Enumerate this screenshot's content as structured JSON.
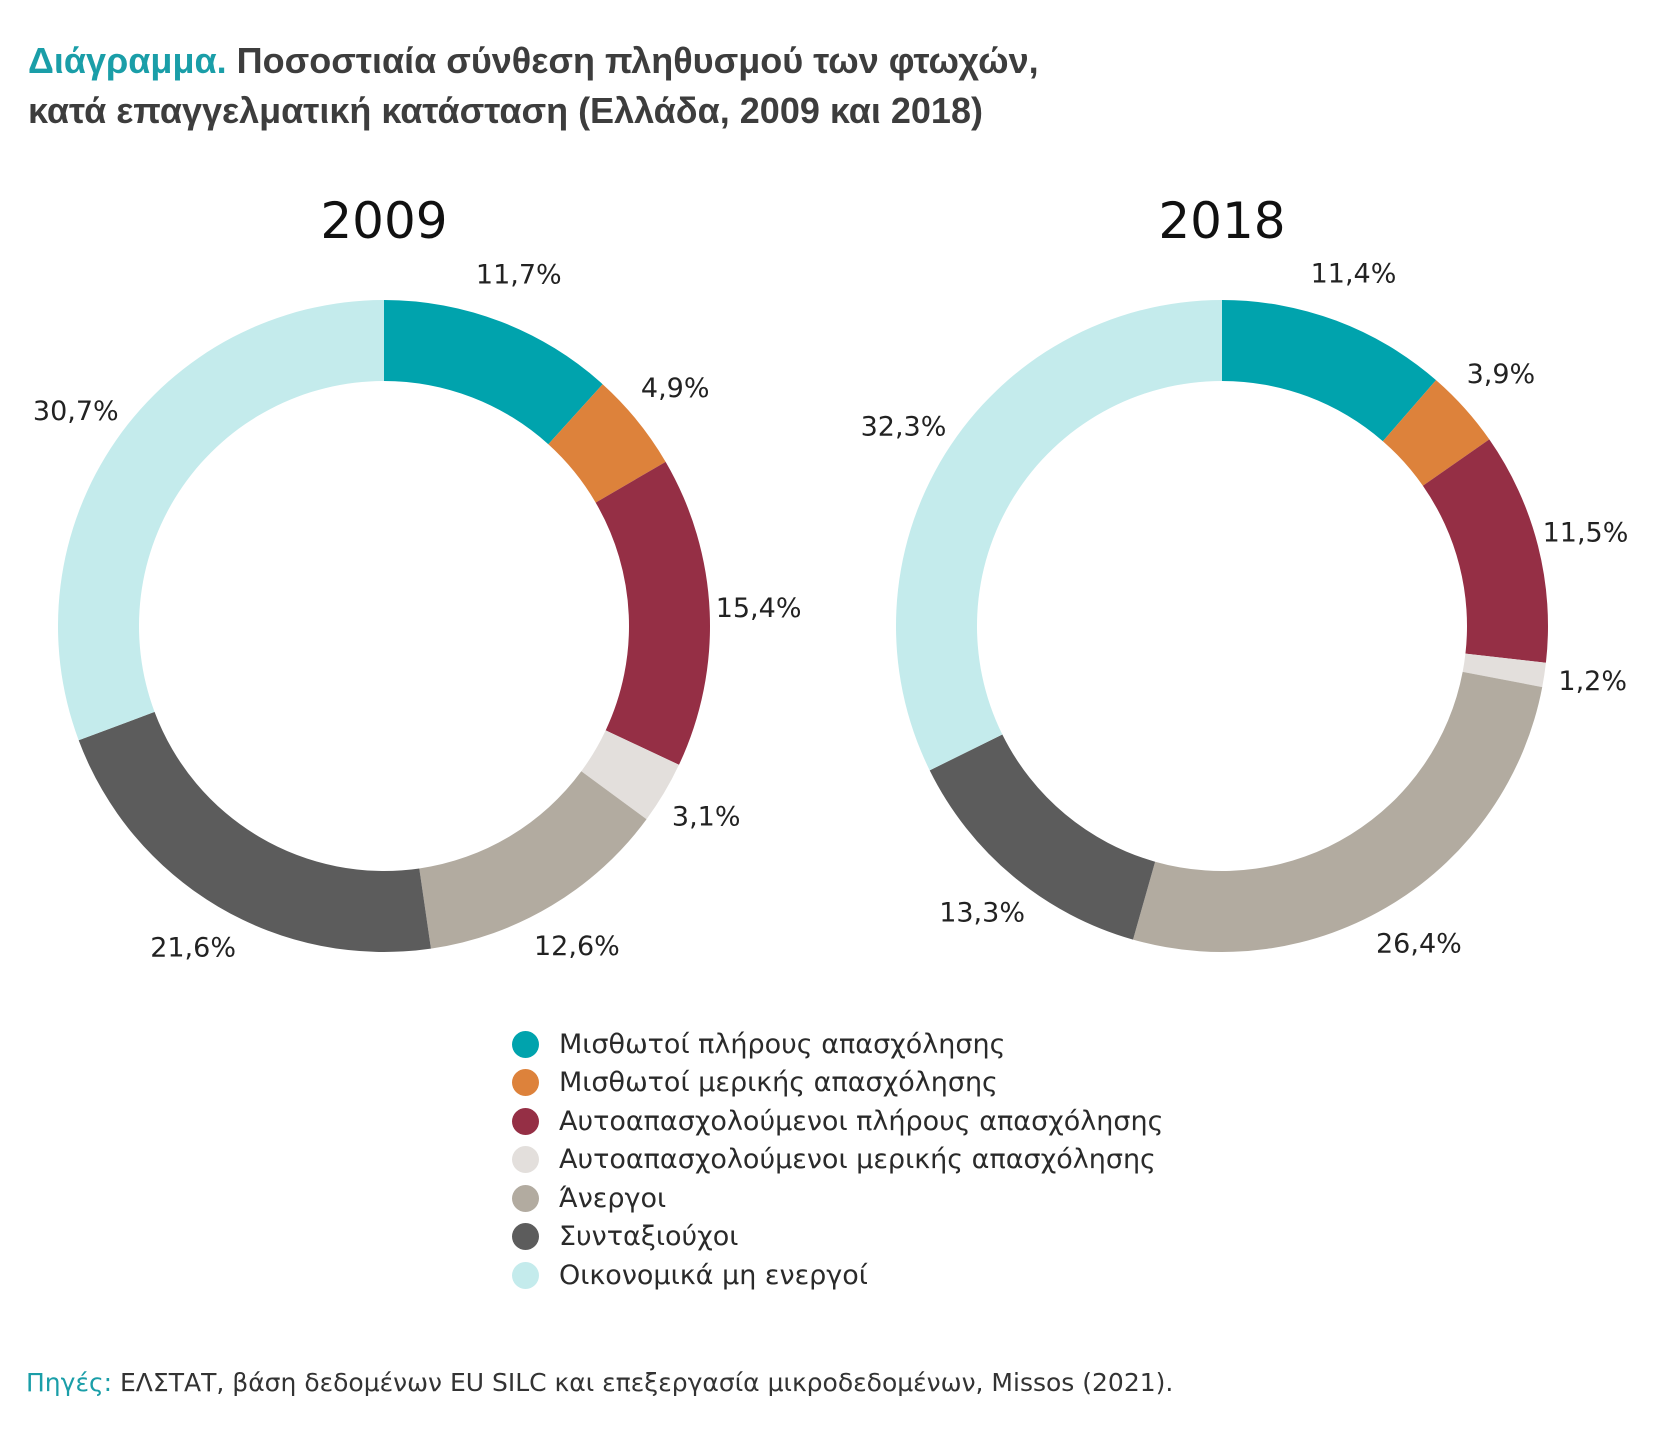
{
  "title": {
    "prefix": "Διάγραμμα.",
    "line1": "Ποσοστιαία σύνθεση πληθυσμού των φτωχών,",
    "line2": "κατά επαγγελματική κατάσταση (Ελλάδα, 2009 και 2018)"
  },
  "chart_data": [
    {
      "type": "pie",
      "title": "2009",
      "categories": [
        "Μισθωτοί πλήρους απασχόλησης",
        "Μισθωτοί μερικής απασχόλησης",
        "Αυτοαπασχολούμενοι πλήρους απασχόλησης",
        "Αυτοαπασχολούμενοι μερικής απασχόλησης",
        "Άνεργοι",
        "Συνταξιούχοι",
        "Οικονομικά μη ενεργοί"
      ],
      "values": [
        11.7,
        4.9,
        15.4,
        3.1,
        12.6,
        21.6,
        30.7
      ],
      "labels": [
        "11,7%",
        "4,9%",
        "15,4%",
        "3,1%",
        "12,6%",
        "21,6%",
        "30,7%"
      ]
    },
    {
      "type": "pie",
      "title": "2018",
      "categories": [
        "Μισθωτοί πλήρους απασχόλησης",
        "Μισθωτοί μερικής απασχόλησης",
        "Αυτοαπασχολούμενοι πλήρους απασχόλησης",
        "Αυτοαπασχολούμενοι μερικής απασχόλησης",
        "Άνεργοι",
        "Συνταξιούχοι",
        "Οικονομικά μη ενεργοί"
      ],
      "values": [
        11.4,
        3.9,
        11.5,
        1.2,
        26.4,
        13.3,
        32.3
      ],
      "labels": [
        "11,4%",
        "3,9%",
        "11,5%",
        "1,2%",
        "26,4%",
        "13,3%",
        "32,3%"
      ]
    }
  ],
  "colors": [
    "#00a3ad",
    "#dd823b",
    "#952f45",
    "#e3dfdc",
    "#b2aba0",
    "#5c5c5c",
    "#c4ebec"
  ],
  "legend": [
    {
      "label": "Μισθωτοί πλήρους απασχόλησης",
      "color": "#00a3ad"
    },
    {
      "label": "Μισθωτοί μερικής απασχόλησης",
      "color": "#dd823b"
    },
    {
      "label": "Αυτοαπασχολούμενοι πλήρους απασχόλησης",
      "color": "#952f45"
    },
    {
      "label": "Αυτοαπασχολούμενοι μερικής απασχόλησης",
      "color": "#e3dfdc"
    },
    {
      "label": "Άνεργοι",
      "color": "#b2aba0"
    },
    {
      "label": "Συνταξιούχοι",
      "color": "#5c5c5c"
    },
    {
      "label": "Οικονομικά μη ενεργοί",
      "color": "#c4ebec"
    }
  ],
  "source": {
    "prefix": "Πηγές:",
    "text": "ΕΛΣΤΑΤ, βάση δεδομένων EU SILC και επεξεργασία μικροδεδομένων, Missos (2021)."
  }
}
